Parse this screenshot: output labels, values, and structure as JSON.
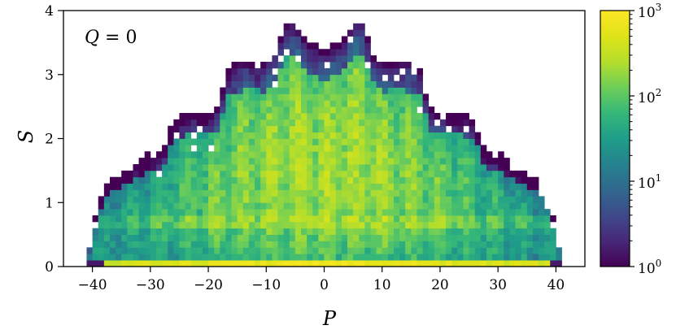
{
  "chart_data": {
    "type": "heatmap",
    "title": "",
    "xlabel": "P",
    "ylabel": "S",
    "xlim": [
      -45,
      45
    ],
    "ylim": [
      0,
      4
    ],
    "x_ticks": [
      -40,
      -30,
      -20,
      -10,
      0,
      10,
      20,
      30,
      40
    ],
    "x_tick_labels": [
      "−40",
      "−30",
      "−20",
      "−10",
      "0",
      "10",
      "20",
      "30",
      "40"
    ],
    "y_ticks": [
      0,
      1,
      2,
      3,
      4
    ],
    "y_tick_labels": [
      "0",
      "1",
      "2",
      "3",
      "4"
    ],
    "annotation": {
      "symbol": "Q",
      "eq": " = 0"
    },
    "colorbar": {
      "scale": "log",
      "min": 1,
      "max": 1000,
      "tick_bases": [
        "10",
        "10",
        "10",
        "10"
      ],
      "tick_exponents": [
        "0",
        "1",
        "2",
        "3"
      ],
      "colormap": "viridis"
    },
    "grid": false,
    "cell_size": {
      "dp": 1,
      "ds": 0.1
    },
    "envelope": {
      "P": [
        0,
        2,
        4,
        5,
        6,
        7,
        8,
        10,
        12,
        14,
        16,
        17,
        18,
        20,
        22,
        24,
        26,
        27,
        28,
        30,
        32,
        34,
        36,
        38,
        40,
        41
      ],
      "S_max": [
        3.3,
        3.45,
        3.6,
        3.75,
        3.85,
        3.75,
        3.35,
        3.15,
        3.2,
        3.2,
        3.1,
        3.05,
        2.45,
        2.35,
        2.4,
        2.35,
        2.25,
        2.0,
        1.75,
        1.75,
        1.6,
        1.45,
        1.35,
        1.2,
        0.55,
        0.05
      ]
    },
    "peak_density": 300,
    "bottom_row_density": 900
  }
}
